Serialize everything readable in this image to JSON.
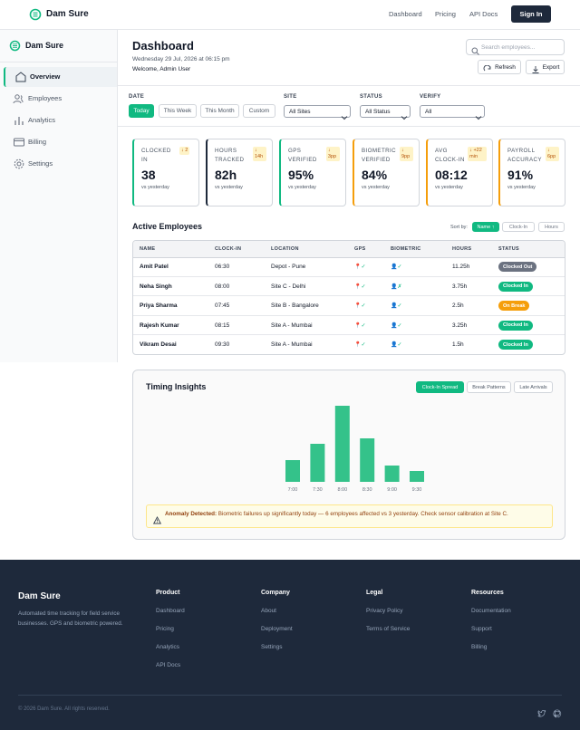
{
  "nav": {
    "brand": "Dam Sure",
    "links": [
      "Dashboard",
      "Pricing",
      "API Docs"
    ],
    "cta": "Sign In"
  },
  "sidebar": {
    "brand": "Dam Sure",
    "items": [
      "Overview",
      "Employees",
      "Analytics",
      "Billing",
      "Settings"
    ]
  },
  "header": {
    "title": "Dashboard",
    "datetime": "Wednesday 29 Jul, 2026 at 06:15 pm",
    "welcome": "Welcome, Admin User",
    "search_placeholder": "Search employees...",
    "actions": [
      "Refresh",
      "Export"
    ]
  },
  "filters": {
    "date": {
      "label": "DATE",
      "options": [
        "Today",
        "This Week",
        "This Month",
        "Custom"
      ]
    },
    "site": {
      "label": "SITE",
      "value": "All Sites"
    },
    "status": {
      "label": "STATUS",
      "value": "All Status"
    },
    "verify": {
      "label": "VERIFY",
      "value": "All"
    }
  },
  "kpis": [
    {
      "label": "CLOCKED IN",
      "delta": "↓ 2",
      "value": "38",
      "note": "vs yesterday",
      "accent": "#10b981"
    },
    {
      "label": "HOURS TRACKED",
      "delta": "↓ 14h",
      "value": "82h",
      "note": "vs yesterday",
      "accent": "#1e293b"
    },
    {
      "label": "GPS VERIFIED",
      "delta": "↓ 3pp",
      "value": "95%",
      "note": "vs yesterday",
      "accent": "#10b981"
    },
    {
      "label": "BIOMETRIC VERIFIED",
      "delta": "↓ 9pp",
      "value": "84%",
      "note": "vs yesterday",
      "accent": "#f59e0b"
    },
    {
      "label": "AVG CLOCK-IN",
      "delta": "↓ +22 min",
      "value": "08:12",
      "note": "vs yesterday",
      "accent": "#f59e0b"
    },
    {
      "label": "PAYROLL ACCURACY",
      "delta": "↓ 6pp",
      "value": "91%",
      "note": "vs yesterday",
      "accent": "#f59e0b"
    }
  ],
  "employees": {
    "title": "Active Employees",
    "sort_label": "Sort by:",
    "sort_options": [
      "Name ↑",
      "Clock-In",
      "Hours"
    ],
    "columns": [
      "NAME",
      "CLOCK-IN",
      "LOCATION",
      "GPS",
      "BIOMETRIC",
      "HOURS",
      "STATUS"
    ],
    "rows": [
      [
        "Amit Patel",
        "06:30",
        "Depot - Pune",
        "📍✓",
        "👤✓",
        "11.25h",
        "Clocked Out"
      ],
      [
        "Neha Singh",
        "08:00",
        "Site C - Delhi",
        "📍✓",
        "👤✗",
        "3.75h",
        "Clocked In"
      ],
      [
        "Priya Sharma",
        "07:45",
        "Site B - Bangalore",
        "📍✓",
        "👤✓",
        "2.5h",
        "On Break"
      ],
      [
        "Rajesh Kumar",
        "08:15",
        "Site A - Mumbai",
        "📍✓",
        "👤✓",
        "3.25h",
        "Clocked In"
      ],
      [
        "Vikram Desai",
        "09:30",
        "Site A - Mumbai",
        "📍✓",
        "👤✓",
        "1.5h",
        "Clocked In"
      ]
    ],
    "status_colors": [
      "#6b7280",
      "#10b981",
      "#f59e0b",
      "#10b981",
      "#10b981"
    ]
  },
  "timing_insights": {
    "title": "Timing Insights",
    "tabs": [
      "Clock-In Spread",
      "Break Patterns",
      "Late Arrivals"
    ],
    "chart": {
      "type": "bar",
      "categories": [
        "7:00",
        "7:30",
        "8:00",
        "8:30",
        "9:00",
        "9:30"
      ],
      "values": [
        4,
        7,
        14,
        8,
        3,
        2
      ],
      "color": "#34c28a"
    },
    "alert": {
      "label": "Anomaly Detected:",
      "message": "Biometric failures up significantly today — 6 employees affected vs 3 yesterday. Check sensor calibration at Site C."
    }
  },
  "footer": {
    "brand": "Dam Sure",
    "description": "Automated time tracking for field service businesses. GPS and biometric powered.",
    "columns": [
      {
        "heading": "Product",
        "links": [
          "Dashboard",
          "Pricing",
          "Analytics",
          "API Docs"
        ]
      },
      {
        "heading": "Company",
        "links": [
          "About",
          "Deployment",
          "Settings"
        ]
      },
      {
        "heading": "Legal",
        "links": [
          "Privacy Policy",
          "Terms of Service"
        ]
      },
      {
        "heading": "Resources",
        "links": [
          "Documentation",
          "Support",
          "Billing"
        ]
      }
    ],
    "copyright": "© 2026 Dam Sure. All rights reserved."
  }
}
